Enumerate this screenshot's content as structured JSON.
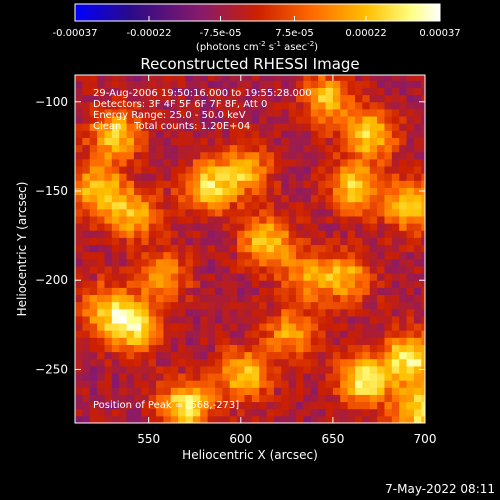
{
  "chart_data": {
    "type": "heatmap",
    "title": "Reconstructed RHESSI Image",
    "xlabel": "Heliocentric X (arcsec)",
    "ylabel": "Heliocentric Y (arcsec)",
    "xlim": [
      510,
      700
    ],
    "ylim": [
      -280,
      -85
    ],
    "x_ticks": [
      550,
      600,
      650,
      700
    ],
    "y_ticks": [
      -100,
      -150,
      -200,
      -250
    ],
    "colorbar": {
      "min": -0.00037,
      "max": 0.00037,
      "ticks": [
        -0.00037,
        -0.00022,
        -7.5e-05,
        7.5e-05,
        0.00022,
        0.00037
      ],
      "tick_labels": [
        "-0.00037",
        "-0.00022",
        "-7.5e-05",
        "7.5e-05",
        "0.00022",
        "0.00037"
      ],
      "unit_parts": [
        "(photons cm",
        "-2",
        " s",
        "-1",
        " asec",
        "-2",
        ")"
      ],
      "colors": [
        "#0000ff",
        "#2a0a8a",
        "#8a1a6a",
        "#cc2000",
        "#ff6a00",
        "#ffc000",
        "#ffff80",
        "#ffffff"
      ]
    },
    "annotations": [
      "29-Aug-2006 19:50:16.000 to 19:55:28.000",
      "Detectors: 3F 4F 5F 6F 7F 8F, Att 0",
      "Energy Range: 25.0 - 50.0 keV",
      "Clean    Total counts: 1.20E+04"
    ],
    "peak_label": "Position of Peak = [568,-273]",
    "bright_regions": [
      {
        "x": 530,
        "y": -120,
        "value": 0.0003
      },
      {
        "x": 520,
        "y": -150,
        "value": 0.0003
      },
      {
        "x": 540,
        "y": -165,
        "value": 0.00028
      },
      {
        "x": 580,
        "y": -150,
        "value": 0.00032
      },
      {
        "x": 600,
        "y": -140,
        "value": 0.00026
      },
      {
        "x": 612,
        "y": -180,
        "value": 0.0003
      },
      {
        "x": 540,
        "y": -228,
        "value": 0.00032
      },
      {
        "x": 525,
        "y": -218,
        "value": 0.00026
      },
      {
        "x": 568,
        "y": -273,
        "value": 0.00037
      },
      {
        "x": 600,
        "y": -255,
        "value": 0.0003
      },
      {
        "x": 668,
        "y": -120,
        "value": 0.0003
      },
      {
        "x": 645,
        "y": -100,
        "value": 0.00028
      },
      {
        "x": 690,
        "y": -160,
        "value": 0.00032
      },
      {
        "x": 660,
        "y": -150,
        "value": 0.0003
      },
      {
        "x": 655,
        "y": -200,
        "value": 0.00026
      },
      {
        "x": 665,
        "y": -258,
        "value": 0.00035
      },
      {
        "x": 690,
        "y": -245,
        "value": 0.00036
      },
      {
        "x": 695,
        "y": -275,
        "value": 0.00034
      },
      {
        "x": 625,
        "y": -232,
        "value": 0.00024
      },
      {
        "x": 556,
        "y": -200,
        "value": 0.00022
      },
      {
        "x": 633,
        "y": -200,
        "value": 0.0002
      }
    ],
    "grid": false
  },
  "footer": {
    "date": "7-May-2022 08:11"
  }
}
